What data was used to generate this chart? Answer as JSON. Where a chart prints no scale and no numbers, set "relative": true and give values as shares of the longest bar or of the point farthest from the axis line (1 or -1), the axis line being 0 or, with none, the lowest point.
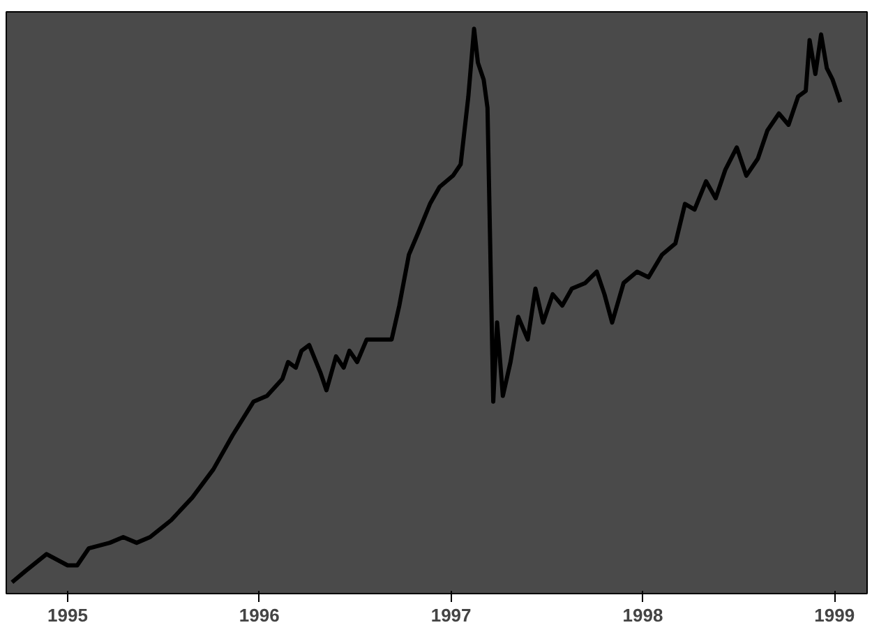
{
  "chart_data": {
    "type": "line",
    "relative": true,
    "xlim": [
      1994.68,
      1999.17
    ],
    "xticks": [
      1995,
      1996,
      1997,
      1998,
      1999
    ],
    "series": [
      {
        "color": "#000000",
        "x": [
          1994.71,
          1994.78,
          1994.89,
          1995.0,
          1995.05,
          1995.11,
          1995.22,
          1995.29,
          1995.36,
          1995.43,
          1995.54,
          1995.65,
          1995.76,
          1995.86,
          1995.97,
          1996.04,
          1996.12,
          1996.15,
          1996.19,
          1996.22,
          1996.26,
          1996.32,
          1996.35,
          1996.4,
          1996.44,
          1996.47,
          1996.51,
          1996.56,
          1996.62,
          1996.69,
          1996.73,
          1996.78,
          1996.83,
          1996.89,
          1996.94,
          1997.01,
          1997.05,
          1997.09,
          1997.12,
          1997.14,
          1997.17,
          1997.19,
          1997.22,
          1997.24,
          1997.27,
          1997.31,
          1997.35,
          1997.4,
          1997.44,
          1997.48,
          1997.53,
          1997.58,
          1997.63,
          1997.7,
          1997.76,
          1997.8,
          1997.84,
          1997.9,
          1997.97,
          1998.03,
          1998.1,
          1998.17,
          1998.22,
          1998.27,
          1998.33,
          1998.38,
          1998.43,
          1998.49,
          1998.54,
          1998.6,
          1998.65,
          1998.71,
          1998.76,
          1998.81,
          1998.85,
          1998.87,
          1998.9,
          1998.93,
          1998.96,
          1998.99,
          1999.03
        ],
        "values": [
          0.02,
          0.04,
          0.07,
          0.05,
          0.05,
          0.08,
          0.09,
          0.1,
          0.09,
          0.1,
          0.13,
          0.17,
          0.22,
          0.28,
          0.34,
          0.35,
          0.38,
          0.41,
          0.4,
          0.43,
          0.44,
          0.39,
          0.36,
          0.42,
          0.4,
          0.43,
          0.41,
          0.45,
          0.45,
          0.45,
          0.51,
          0.6,
          0.64,
          0.69,
          0.72,
          0.74,
          0.76,
          0.88,
          1.0,
          0.94,
          0.91,
          0.86,
          0.34,
          0.48,
          0.35,
          0.41,
          0.49,
          0.45,
          0.54,
          0.48,
          0.53,
          0.51,
          0.54,
          0.55,
          0.57,
          0.53,
          0.48,
          0.55,
          0.57,
          0.56,
          0.6,
          0.62,
          0.69,
          0.68,
          0.73,
          0.7,
          0.75,
          0.79,
          0.74,
          0.77,
          0.82,
          0.85,
          0.83,
          0.88,
          0.89,
          0.98,
          0.92,
          0.99,
          0.93,
          0.91,
          0.87
        ]
      }
    ]
  }
}
